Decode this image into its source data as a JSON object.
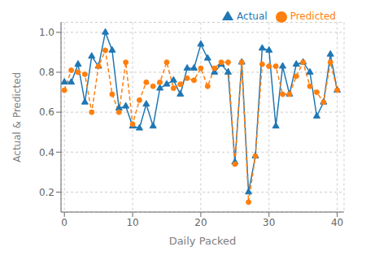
{
  "chart_data": {
    "type": "line",
    "xlabel": "Daily Packed",
    "ylabel": "Actual & Predicted",
    "x": [
      0,
      1,
      2,
      3,
      4,
      5,
      6,
      7,
      8,
      9,
      10,
      11,
      12,
      13,
      14,
      15,
      16,
      17,
      18,
      19,
      20,
      21,
      22,
      23,
      24,
      25,
      26,
      27,
      28,
      29,
      30,
      31,
      32,
      33,
      34,
      35,
      36,
      37,
      38,
      39,
      40
    ],
    "series": [
      {
        "name": "Actual",
        "color": "#1f77b4",
        "marker": "triangle",
        "line_style": "solid",
        "values": [
          0.75,
          0.75,
          0.84,
          0.65,
          0.88,
          0.83,
          1.0,
          0.91,
          0.62,
          0.63,
          0.53,
          0.52,
          0.64,
          0.53,
          0.72,
          0.74,
          0.76,
          0.69,
          0.82,
          0.82,
          0.94,
          0.87,
          0.8,
          0.84,
          0.8,
          0.35,
          0.85,
          0.2,
          0.38,
          0.92,
          0.91,
          0.53,
          0.83,
          0.69,
          0.84,
          0.85,
          0.8,
          0.58,
          0.65,
          0.89,
          0.71
        ]
      },
      {
        "name": "Predicted",
        "color": "#ff7f0e",
        "marker": "circle",
        "line_style": "dashed",
        "values": [
          0.71,
          0.81,
          0.8,
          0.79,
          0.6,
          0.83,
          0.91,
          0.69,
          0.6,
          0.85,
          0.54,
          0.66,
          0.75,
          0.73,
          0.75,
          0.85,
          0.72,
          0.74,
          0.77,
          0.76,
          0.82,
          0.73,
          0.82,
          0.85,
          0.85,
          0.34,
          0.85,
          0.15,
          0.38,
          0.84,
          0.83,
          0.83,
          0.69,
          0.69,
          0.78,
          0.85,
          0.73,
          0.7,
          0.65,
          0.85,
          0.71
        ]
      }
    ],
    "xlim": [
      -0.5,
      41
    ],
    "ylim": [
      0.1,
      1.05
    ],
    "xticks": [
      0,
      10,
      20,
      30,
      40
    ],
    "yticks": [
      0.2,
      0.4,
      0.6,
      0.8,
      {
        "value": 1.0,
        "label": "1.0"
      }
    ],
    "grid": true,
    "legend": "upper right"
  }
}
